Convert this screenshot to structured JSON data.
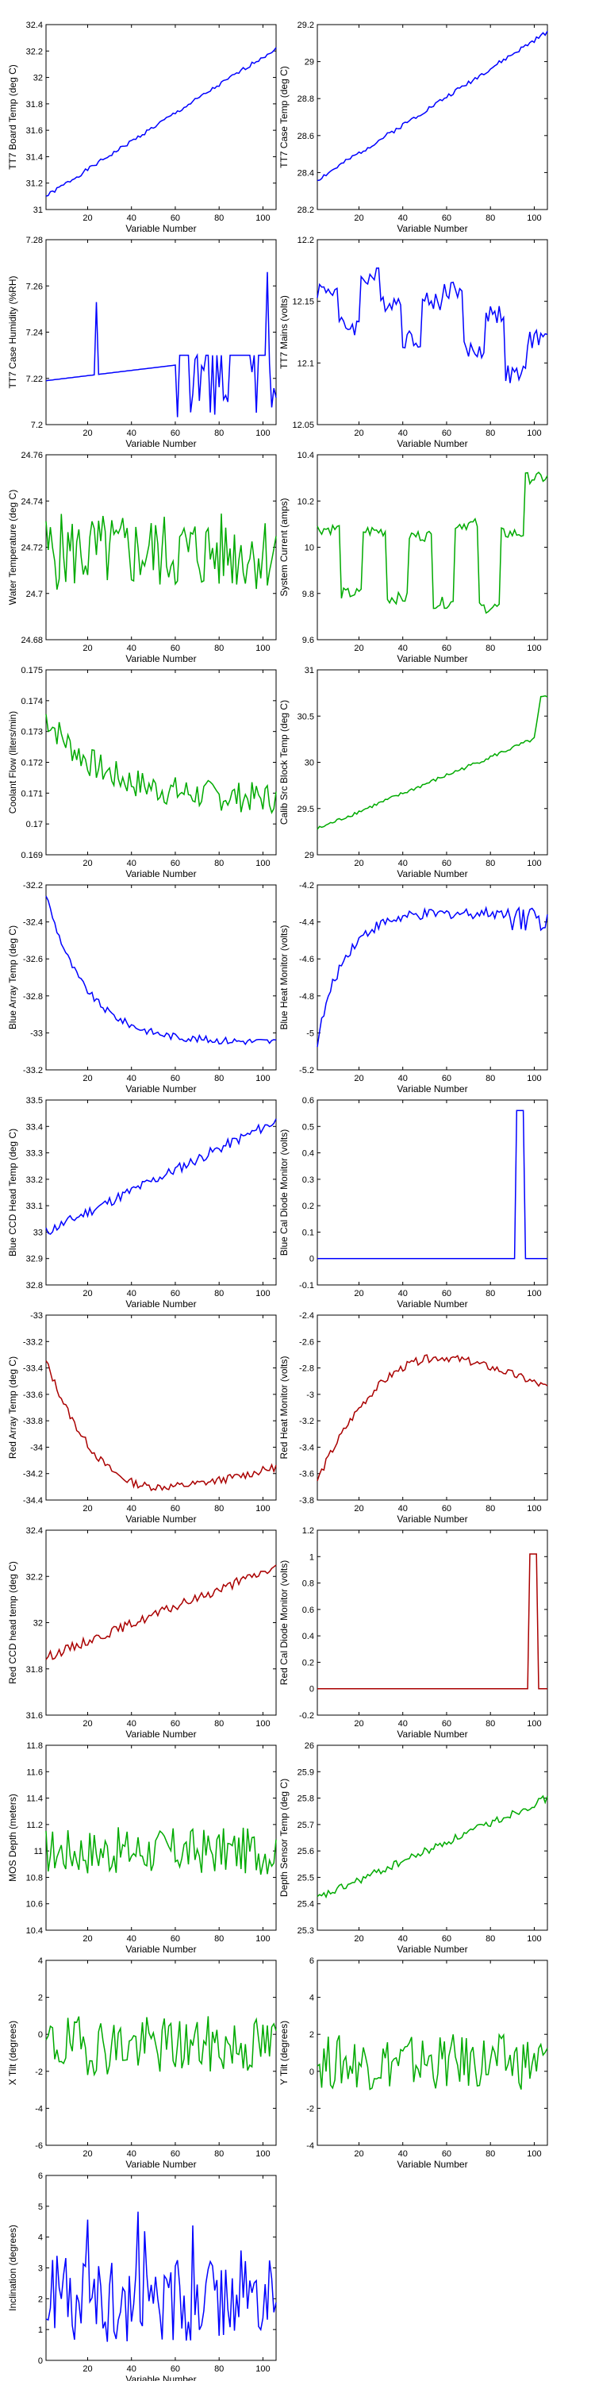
{
  "figure": {
    "xlabel": "Variable Number",
    "x_ticks": [
      20,
      40,
      60,
      80,
      100
    ],
    "x_range": [
      1,
      106
    ]
  },
  "chart_data": [
    {
      "type": "line",
      "ylabel": "TT7 Board Temp (deg C)",
      "color": "#0000ff",
      "ylim": [
        31,
        32.4
      ],
      "y_ticks": [
        31,
        31.2,
        31.4,
        31.6,
        31.8,
        32,
        32.2,
        32.4
      ],
      "gen": {
        "kind": "ramp",
        "start": 31.1,
        "end": 32.22,
        "noise": 0.015,
        "seed": 1
      }
    },
    {
      "type": "line",
      "ylabel": "TT7 Case Temp (deg C)",
      "color": "#0000ff",
      "ylim": [
        28.2,
        29.2
      ],
      "y_ticks": [
        28.2,
        28.4,
        28.6,
        28.8,
        29,
        29.2
      ],
      "gen": {
        "kind": "ramp",
        "start": 28.36,
        "end": 29.16,
        "noise": 0.012,
        "seed": 2
      }
    },
    {
      "type": "line",
      "ylabel": "TT7 Case Humidity (%RH)",
      "color": "#0000ff",
      "ylim": [
        7.2,
        7.28
      ],
      "y_ticks": [
        7.2,
        7.22,
        7.24,
        7.26,
        7.28
      ],
      "gen": {
        "kind": "humidity",
        "seed": 3
      }
    },
    {
      "type": "line",
      "ylabel": "TT7 Mains  (volts)",
      "color": "#0000ff",
      "ylim": [
        12.05,
        12.2
      ],
      "y_ticks": [
        12.05,
        12.1,
        12.15,
        12.2
      ],
      "gen": {
        "kind": "steps",
        "levels": [
          12.16,
          12.13,
          12.17,
          12.15,
          12.12,
          12.15,
          12.16,
          12.11,
          12.14,
          12.09,
          12.12
        ],
        "noise": 0.008,
        "seed": 4
      }
    },
    {
      "type": "line",
      "ylabel": "Water Temperature (deg C)",
      "color": "#00aa00",
      "ylim": [
        24.68,
        24.76
      ],
      "y_ticks": [
        24.68,
        24.7,
        24.72,
        24.74,
        24.76
      ],
      "gen": {
        "kind": "noise",
        "mean": 24.718,
        "amp": 0.017,
        "seed": 5
      }
    },
    {
      "type": "line",
      "ylabel": "System Current (amps)",
      "color": "#00aa00",
      "ylim": [
        9.6,
        10.4
      ],
      "y_ticks": [
        9.6,
        9.8,
        10,
        10.2,
        10.4
      ],
      "gen": {
        "kind": "steps",
        "levels": [
          10.08,
          9.8,
          10.07,
          9.78,
          10.05,
          9.76,
          10.1,
          9.74,
          10.06,
          10.3
        ],
        "noise": 0.025,
        "seed": 6
      }
    },
    {
      "type": "line",
      "ylabel": "Coolant Flow (liters/min)",
      "color": "#00aa00",
      "ylim": [
        0.169,
        0.175
      ],
      "y_ticks": [
        0.169,
        0.17,
        0.171,
        0.172,
        0.173,
        0.174,
        0.175
      ],
      "gen": {
        "kind": "decay",
        "start": 0.1735,
        "end": 0.1708,
        "tau": 25,
        "noise": 0.0005,
        "seed": 7
      }
    },
    {
      "type": "line",
      "ylabel": "Calib Src Block Temp (deg C)",
      "color": "#00aa00",
      "ylim": [
        29,
        31
      ],
      "y_ticks": [
        29,
        29.5,
        30,
        30.5,
        31
      ],
      "gen": {
        "kind": "ramp_jump",
        "start": 29.28,
        "end": 30.25,
        "jump": 0.45,
        "noise": 0.02,
        "seed": 8
      }
    },
    {
      "type": "line",
      "ylabel": "Blue Array Temp (deg C)",
      "color": "#0000ff",
      "ylim": [
        -33.2,
        -32.2
      ],
      "y_ticks": [
        -33.2,
        -33,
        -32.8,
        -32.6,
        -32.4,
        -32.2
      ],
      "gen": {
        "kind": "decay",
        "start": -32.25,
        "end": -33.05,
        "tau": 18,
        "noise": 0.02,
        "seed": 9
      }
    },
    {
      "type": "line",
      "ylabel": "Blue Heat Monitor (volts)",
      "color": "#0000ff",
      "ylim": [
        -5.2,
        -4.2
      ],
      "y_ticks": [
        -5.2,
        -5,
        -4.8,
        -4.6,
        -4.4,
        -4.2
      ],
      "gen": {
        "kind": "rise",
        "start": -5.05,
        "end": -4.35,
        "tau": 12,
        "noise": 0.03,
        "seed": 10
      }
    },
    {
      "type": "line",
      "ylabel": "Blue CCD Head Temp (deg C)",
      "color": "#0000ff",
      "ylim": [
        32.8,
        33.5
      ],
      "y_ticks": [
        32.8,
        32.9,
        33,
        33.1,
        33.2,
        33.3,
        33.4,
        33.5
      ],
      "gen": {
        "kind": "ramp",
        "start": 33.0,
        "end": 33.42,
        "noise": 0.02,
        "seed": 11
      }
    },
    {
      "type": "line",
      "ylabel": "Blue Cal Diode Monitor (volts)",
      "color": "#0000ff",
      "ylim": [
        -0.1,
        0.6
      ],
      "y_ticks": [
        -0.1,
        0,
        0.1,
        0.2,
        0.3,
        0.4,
        0.5,
        0.6
      ],
      "gen": {
        "kind": "pulse",
        "base": 0,
        "peak": 0.56,
        "from": 92,
        "to": 95,
        "seed": 12
      }
    },
    {
      "type": "line",
      "ylabel": "Red Array Temp (deg C)",
      "color": "#aa0000",
      "ylim": [
        -34.4,
        -33
      ],
      "y_ticks": [
        -34.4,
        -34.2,
        -34,
        -33.8,
        -33.6,
        -33.4,
        -33.2,
        -33
      ],
      "gen": {
        "kind": "valley",
        "start": -33.35,
        "bottom": -34.3,
        "end": -34.15,
        "noise": 0.03,
        "seed": 13
      }
    },
    {
      "type": "line",
      "ylabel": "Red Heat Monitor (volts)",
      "color": "#aa0000",
      "ylim": [
        -3.8,
        -2.4
      ],
      "y_ticks": [
        -3.8,
        -3.6,
        -3.4,
        -3.2,
        -3,
        -2.8,
        -2.6,
        -2.4
      ],
      "gen": {
        "kind": "hill",
        "start": -3.65,
        "peak": -2.72,
        "end": -2.95,
        "noise": 0.03,
        "seed": 14
      }
    },
    {
      "type": "line",
      "ylabel": "Red CCD head temp (deg C)",
      "color": "#aa0000",
      "ylim": [
        31.6,
        32.4
      ],
      "y_ticks": [
        31.6,
        31.8,
        32,
        32.2,
        32.4
      ],
      "gen": {
        "kind": "ramp",
        "start": 31.85,
        "end": 32.24,
        "noise": 0.02,
        "seed": 15
      }
    },
    {
      "type": "line",
      "ylabel": "Red Cal Diode Monitor (volts)",
      "color": "#aa0000",
      "ylim": [
        -0.2,
        1.2
      ],
      "y_ticks": [
        -0.2,
        0,
        0.2,
        0.4,
        0.6,
        0.8,
        1,
        1.2
      ],
      "gen": {
        "kind": "pulse",
        "base": 0,
        "peak": 1.02,
        "from": 98,
        "to": 101,
        "seed": 16
      }
    },
    {
      "type": "line",
      "ylabel": "MOS Depth  (meters)",
      "color": "#00aa00",
      "ylim": [
        10.4,
        11.8
      ],
      "y_ticks": [
        10.4,
        10.6,
        10.8,
        11,
        11.2,
        11.4,
        11.6,
        11.8
      ],
      "gen": {
        "kind": "noise",
        "mean": 11.0,
        "amp": 0.18,
        "seed": 17
      }
    },
    {
      "type": "line",
      "ylabel": "Depth Sensor Temp (deg C)",
      "color": "#00aa00",
      "ylim": [
        25.3,
        26
      ],
      "y_ticks": [
        25.3,
        25.4,
        25.5,
        25.6,
        25.7,
        25.8,
        25.9,
        26
      ],
      "gen": {
        "kind": "ramp",
        "start": 25.42,
        "end": 25.8,
        "noise": 0.015,
        "seed": 18
      }
    },
    {
      "type": "line",
      "ylabel": "X Tilt  (degrees)",
      "color": "#00aa00",
      "ylim": [
        -6,
        4
      ],
      "y_ticks": [
        -6,
        -4,
        -2,
        0,
        2,
        4
      ],
      "gen": {
        "kind": "noise",
        "mean": -0.6,
        "amp": 1.6,
        "seed": 19
      }
    },
    {
      "type": "line",
      "ylabel": "Y Tilt  (degrees)",
      "color": "#00aa00",
      "ylim": [
        -4,
        6
      ],
      "y_ticks": [
        -4,
        -2,
        0,
        2,
        4,
        6
      ],
      "gen": {
        "kind": "noise",
        "mean": 0.5,
        "amp": 1.5,
        "seed": 20
      }
    },
    {
      "type": "line",
      "ylabel": "Inclination  (degrees)",
      "color": "#0000ff",
      "ylim": [
        0,
        6
      ],
      "y_ticks": [
        0,
        1,
        2,
        3,
        4,
        5,
        6
      ],
      "gen": {
        "kind": "abs",
        "mean": 2.0,
        "amp": 1.4,
        "seed": 21
      }
    }
  ]
}
